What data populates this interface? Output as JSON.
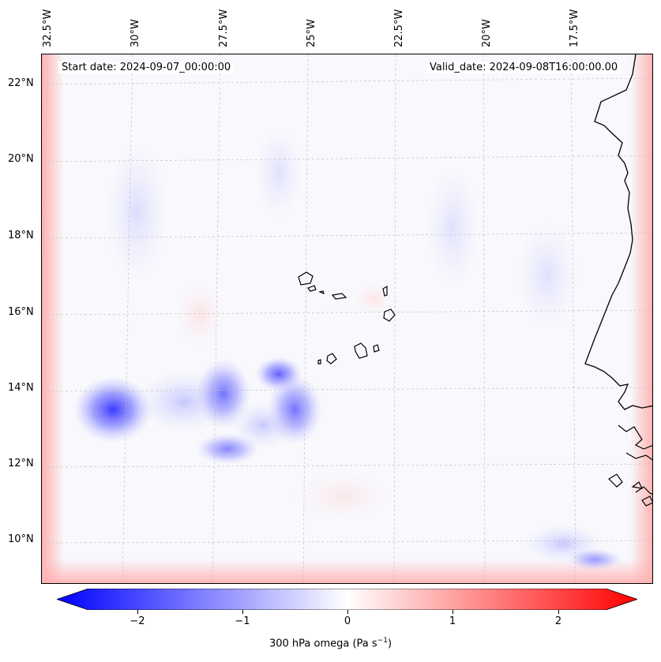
{
  "map": {
    "info": {
      "start_date": "Start date: 2024-09-07_00:00:00",
      "valid_date": "Valid_date: 2024-09-08T16:00:00.00"
    },
    "longitude_labels": [
      "32.5°W",
      "30°W",
      "27.5°W",
      "25°W",
      "22.5°W",
      "20°W",
      "17.5°W"
    ],
    "latitude_labels": [
      "22°N",
      "20°N",
      "18°N",
      "16°N",
      "14°N",
      "12°N",
      "10°N"
    ],
    "field": "300 hPa omega",
    "colors": {
      "negative": "#0000ff",
      "positive": "#ff0000",
      "neutral": "#ffffff",
      "coastline": "#000000",
      "gridline": "#bbbbbb"
    }
  },
  "colorbar": {
    "ticks": [
      "−2",
      "−1",
      "0",
      "1",
      "2"
    ],
    "tick_values": [
      -2,
      -1,
      0,
      1,
      2
    ],
    "range": [
      -2.6,
      2.6
    ],
    "label_prefix": "300 hPa omega (Pa s",
    "label_exp": "−1",
    "label_suffix": ")"
  }
}
